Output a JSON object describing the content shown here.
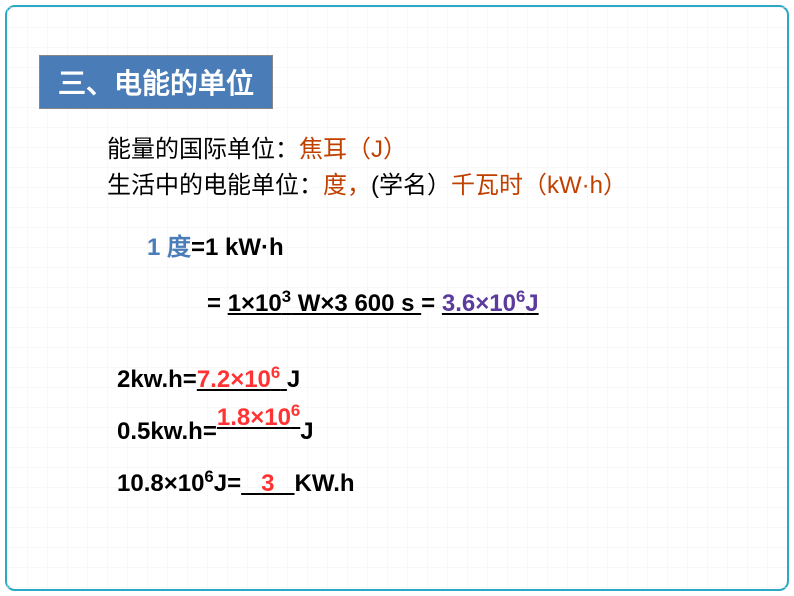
{
  "heading": "三、电能的单位",
  "line1": {
    "prefix": "能量的国际单位：",
    "highlight": "焦耳（J）"
  },
  "line2": {
    "prefix": "生活中的电能单位：",
    "h1": "度，",
    "mid": "(学名）",
    "h2": "千瓦时（kW·h）"
  },
  "line3": {
    "lhs": "1 度",
    "rhs": "=1 kW·h"
  },
  "line4": {
    "eq1": "= ",
    "u_pre": "  1×10",
    "u_sup": "3",
    "u_post": " W×3 600 s  ",
    "eq2": "= ",
    "ans_pre": "3.6×10",
    "ans_sup": "6",
    "ans_post": "J"
  },
  "line5": {
    "lhs": "2kw.h=",
    "ans_pre": "7.2×10",
    "ans_sup": "6",
    "rhs": "J"
  },
  "line6": {
    "lhs": "0.5kw.h=",
    "ans_pre": "1.8×10",
    "ans_sup": "6",
    "rhs": "J"
  },
  "line7": {
    "lhs_pre": "10.8×10",
    "lhs_sup": "6",
    "lhs_post": "J=",
    "ans": "3",
    "rhs": "KW.h"
  },
  "colors": {
    "frame": "#2ba8c4",
    "heading_bg": "#4a7db8",
    "heading_fg": "#ffffff",
    "black": "#000000",
    "brown": "#c04000",
    "blue": "#4a7db8",
    "purple": "#5b3b9c",
    "red": "#ff3333"
  }
}
